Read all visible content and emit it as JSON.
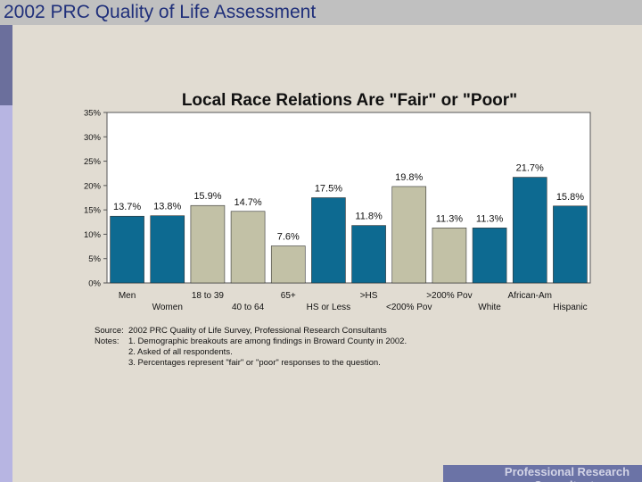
{
  "slide": {
    "header_title": "2002 PRC Quality of Life Assessment",
    "footer_text": "Professional Research Consultants"
  },
  "notes": {
    "source_label": "Source:",
    "source_text": "2002 PRC Quality of Life Survey, Professional Research Consultants",
    "notes_label": "Notes:",
    "items": [
      "1.  Demographic breakouts are among findings in Broward County in 2002.",
      "2.  Asked of all respondents.",
      "3.  Percentages represent \"fair\" or \"poor\" responses to the question."
    ]
  },
  "colors": {
    "teal": "#0d6a91",
    "tan": "#c2c1a6",
    "plot_bg": "#ffffff"
  },
  "chart_data": {
    "type": "bar",
    "title": "Local Race Relations Are \"Fair\" or \"Poor\"",
    "xlabel": "",
    "ylabel": "",
    "ylim": [
      0,
      35
    ],
    "yticks": [
      "0%",
      "5%",
      "10%",
      "15%",
      "20%",
      "25%",
      "30%",
      "35%"
    ],
    "grid": false,
    "categories": [
      "Men",
      "Women",
      "18 to 39",
      "40 to 64",
      "65+",
      "HS or Less",
      ">HS",
      "<200% Pov",
      ">200% Pov",
      "White",
      "African-Am",
      "Hispanic"
    ],
    "values": [
      13.7,
      13.8,
      15.9,
      14.7,
      7.6,
      17.5,
      11.8,
      19.8,
      11.3,
      11.3,
      21.7,
      15.8
    ],
    "labels": [
      "13.7%",
      "13.8%",
      "15.9%",
      "14.7%",
      "7.6%",
      "17.5%",
      "11.8%",
      "19.8%",
      "11.3%",
      "11.3%",
      "21.7%",
      "15.8%"
    ],
    "bar_colors": [
      "teal",
      "teal",
      "tan",
      "tan",
      "tan",
      "teal",
      "teal",
      "tan",
      "tan",
      "teal",
      "teal",
      "teal"
    ]
  }
}
